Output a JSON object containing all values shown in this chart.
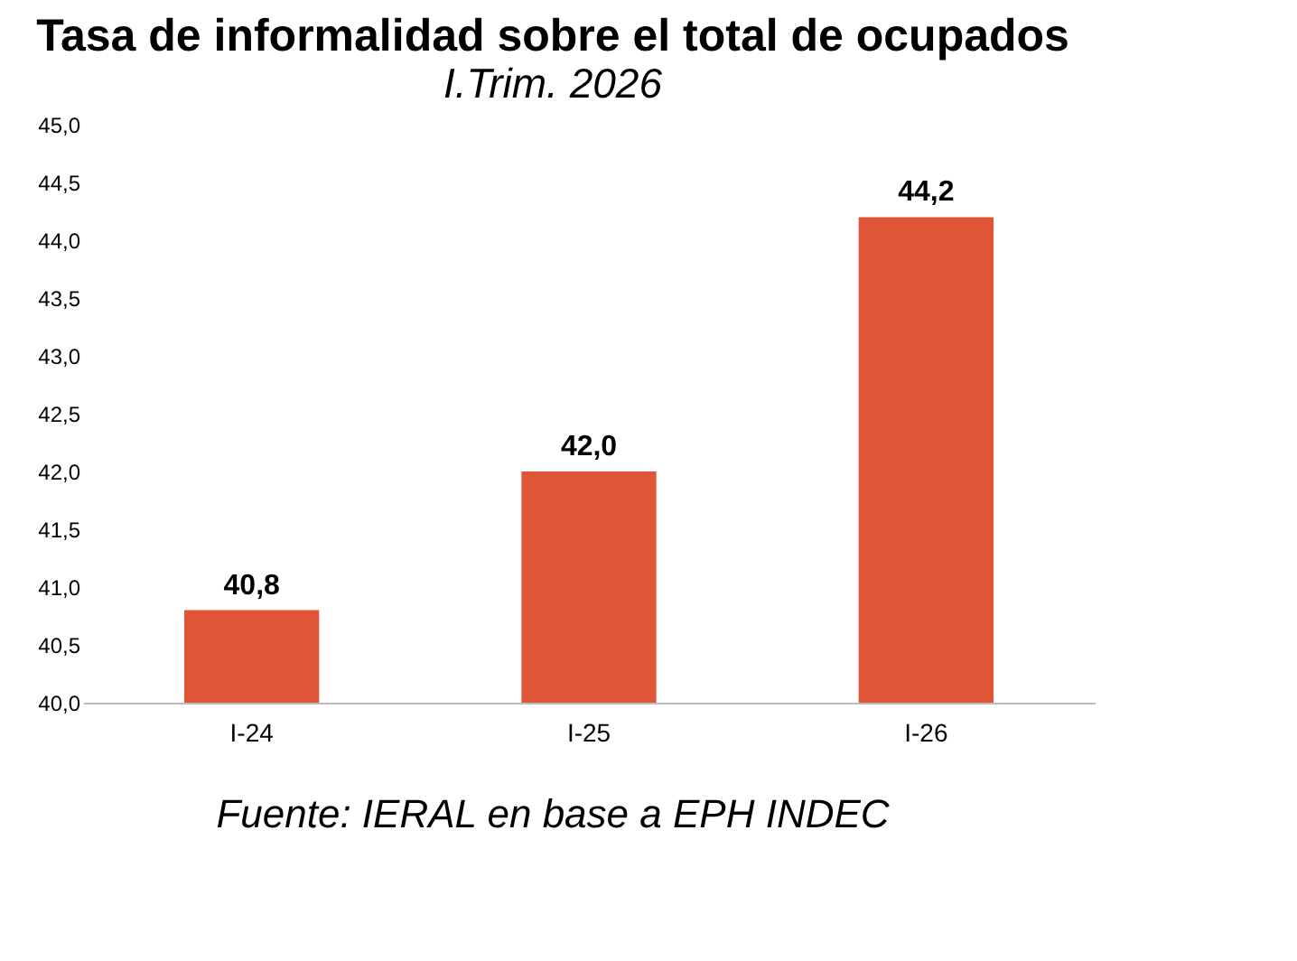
{
  "chart_data": {
    "type": "bar",
    "title": "Tasa de informalidad sobre el total de ocupados",
    "subtitle": "I.Trim. 2026",
    "categories": [
      "I-24",
      "I-25",
      "I-26"
    ],
    "values": [
      40.8,
      42.0,
      44.2
    ],
    "color": "#e05438",
    "value_labels": [
      "40,8",
      "42,0",
      "44,2"
    ],
    "ylim": [
      40,
      45
    ],
    "yticks": [
      {
        "value": 40,
        "label": "40,0"
      },
      {
        "value": 40.5,
        "label": "40,5"
      },
      {
        "value": 41,
        "label": "41,0"
      },
      {
        "value": 41.5,
        "label": "41,5"
      },
      {
        "value": 42,
        "label": "42,0"
      },
      {
        "value": 42.5,
        "label": "42,5"
      },
      {
        "value": 43,
        "label": "43,0"
      },
      {
        "value": 43.5,
        "label": "43,5"
      },
      {
        "value": 44,
        "label": "44,0"
      },
      {
        "value": 44.5,
        "label": "44,5"
      },
      {
        "value": 45,
        "label": "45,0"
      }
    ],
    "grid": false,
    "annotations": [
      "Fuente: IERAL en base a EPH INDEC"
    ]
  }
}
